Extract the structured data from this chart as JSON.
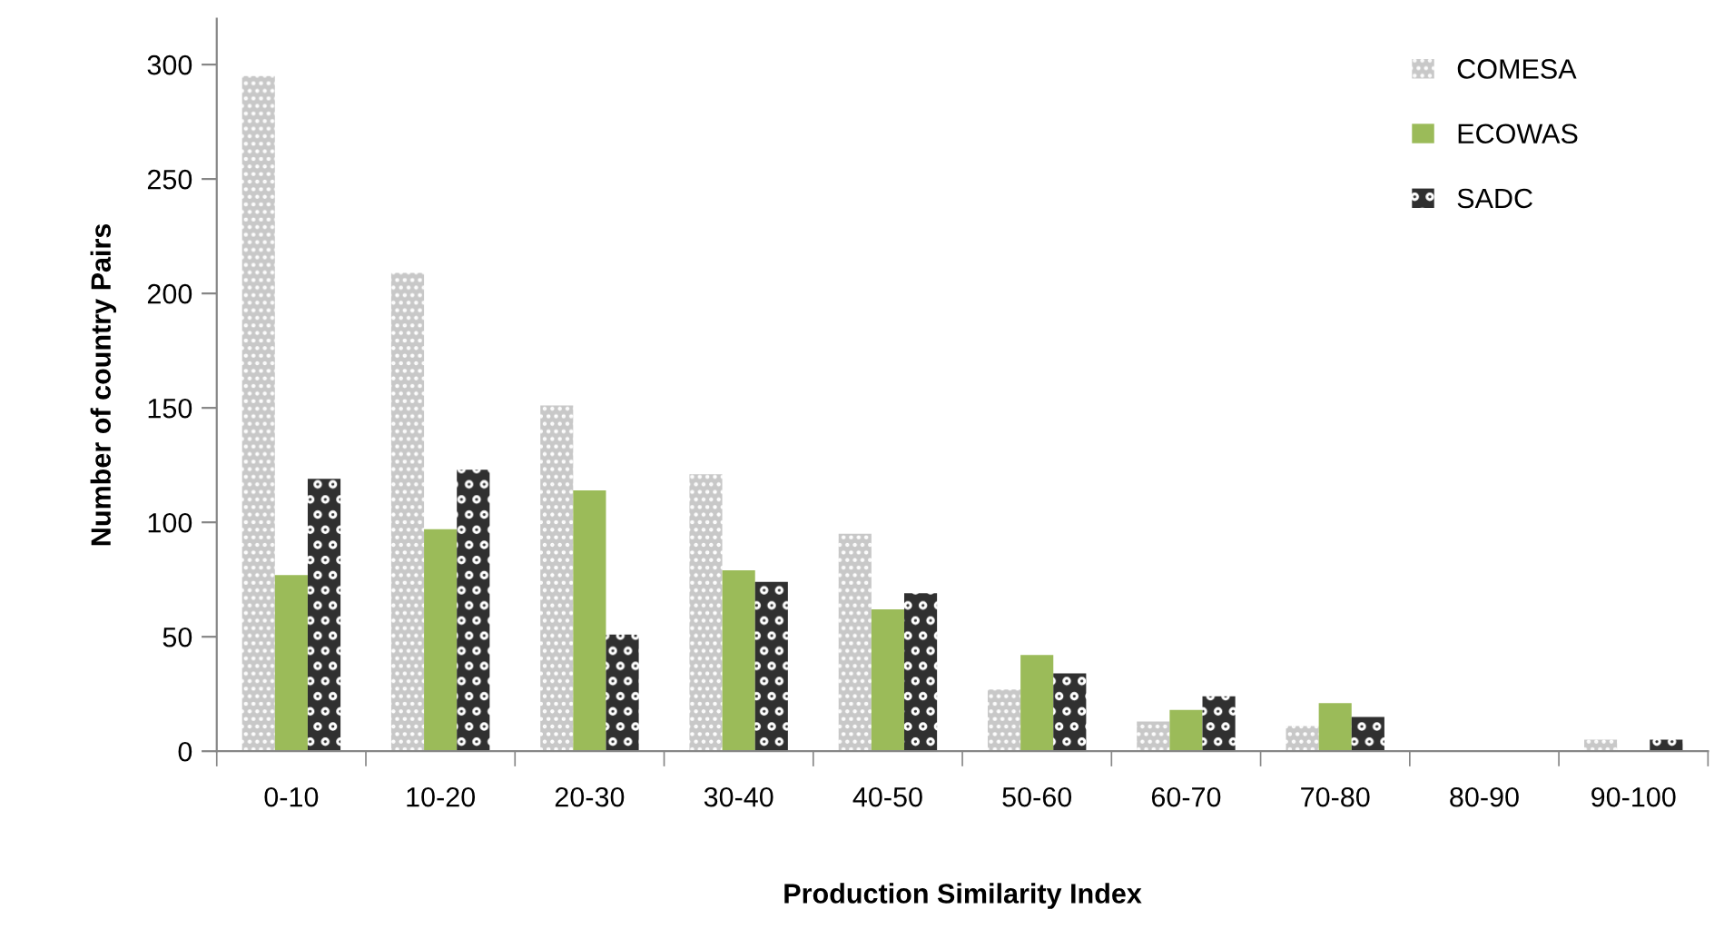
{
  "chart_data": {
    "type": "bar",
    "xlabel": "Production Similarity Index",
    "ylabel": "Number of country Pairs",
    "categories": [
      "0-10",
      "10-20",
      "20-30",
      "30-40",
      "40-50",
      "50-60",
      "60-70",
      "70-80",
      "80-90",
      "90-100"
    ],
    "series": [
      {
        "name": "COMESA",
        "color": "#c8c8c8",
        "values": [
          295,
          209,
          151,
          121,
          95,
          27,
          13,
          11,
          0,
          5
        ]
      },
      {
        "name": "ECOWAS",
        "color": "#9bbb59",
        "values": [
          77,
          97,
          114,
          79,
          62,
          42,
          18,
          21,
          0,
          0
        ]
      },
      {
        "name": "SADC",
        "color": "#303030",
        "values": [
          119,
          123,
          51,
          74,
          69,
          34,
          24,
          15,
          0,
          5
        ]
      }
    ],
    "ylim": [
      0,
      320
    ],
    "yticks": [
      0,
      50,
      100,
      150,
      200,
      250,
      300
    ],
    "grid": false,
    "legend": "top right"
  }
}
